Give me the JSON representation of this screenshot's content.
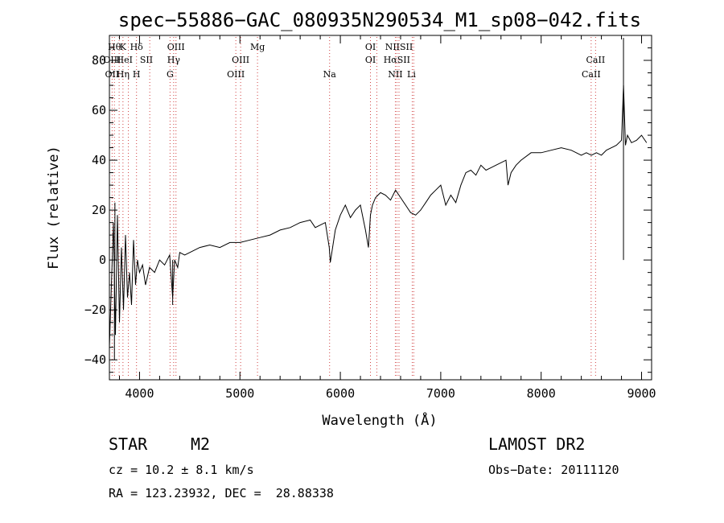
{
  "chart_data": {
    "type": "line",
    "title": "spec−55886−GAC_080935N290534_M1_sp08−042.fits",
    "xlabel": "Wavelength (Å)",
    "ylabel": "Flux (relative)",
    "xlim": [
      3700,
      9100
    ],
    "ylim": [
      -48,
      90
    ],
    "xticks": [
      4000,
      5000,
      6000,
      7000,
      8000,
      9000
    ],
    "yticks": [
      -40,
      -20,
      0,
      20,
      40,
      60,
      80
    ],
    "ytick_labels": [
      "−40",
      "−20",
      "0",
      "20",
      "40",
      "60",
      "80"
    ],
    "grid": false,
    "series": [
      {
        "x": [
          3700,
          3720,
          3740,
          3760,
          3780,
          3800,
          3820,
          3840,
          3860,
          3880,
          3900,
          3920,
          3940,
          3960,
          3980,
          4000,
          4030,
          4060,
          4100,
          4150,
          4200,
          4250,
          4300,
          4330,
          4350,
          4380,
          4400,
          4450,
          4500,
          4600,
          4700,
          4800,
          4900,
          5000,
          5100,
          5200,
          5300,
          5400,
          5500,
          5600,
          5700,
          5750,
          5800,
          5850,
          5890,
          5900,
          5950,
          6000,
          6050,
          6100,
          6150,
          6200,
          6250,
          6280,
          6300,
          6320,
          6350,
          6400,
          6450,
          6500,
          6550,
          6600,
          6650,
          6700,
          6750,
          6800,
          6850,
          6900,
          6950,
          7000,
          7050,
          7100,
          7150,
          7200,
          7250,
          7300,
          7350,
          7400,
          7450,
          7500,
          7550,
          7600,
          7650,
          7670,
          7700,
          7750,
          7800,
          7900,
          8000,
          8100,
          8200,
          8300,
          8400,
          8450,
          8500,
          8550,
          8600,
          8650,
          8700,
          8750,
          8800,
          8820,
          8840,
          8860,
          8900,
          8950,
          9000,
          9050
        ],
        "y": [
          -35,
          -10,
          15,
          -30,
          18,
          -25,
          5,
          -20,
          10,
          -15,
          -5,
          -18,
          8,
          -10,
          0,
          -5,
          -2,
          -10,
          -3,
          -5,
          0,
          -2,
          2,
          -15,
          0,
          -3,
          3,
          2,
          3,
          5,
          6,
          5,
          7,
          7,
          8,
          9,
          10,
          12,
          13,
          15,
          16,
          13,
          14,
          15,
          5,
          -1,
          12,
          18,
          22,
          17,
          20,
          22,
          12,
          5,
          18,
          22,
          25,
          27,
          26,
          24,
          28,
          25,
          22,
          19,
          18,
          20,
          23,
          26,
          28,
          30,
          22,
          26,
          23,
          30,
          35,
          36,
          34,
          38,
          36,
          37,
          38,
          39,
          40,
          30,
          35,
          38,
          40,
          43,
          43,
          44,
          45,
          44,
          42,
          43,
          42,
          43,
          42,
          44,
          45,
          46,
          48,
          70,
          46,
          50,
          47,
          48,
          50,
          47
        ],
        "spikes": [
          {
            "x": 3755,
            "y": 23
          },
          {
            "x": 3750,
            "y": -40
          },
          {
            "x": 4330,
            "y": -18
          },
          {
            "x": 8820,
            "y": 89
          }
        ]
      }
    ],
    "line_markers": [
      {
        "x": 3750,
        "label": "Hθ",
        "row": 1
      },
      {
        "x": 3835,
        "label": "K",
        "row": 1
      },
      {
        "x": 3970,
        "label": "Hδ",
        "row": 1
      },
      {
        "x": 4363,
        "label": "OIII",
        "row": 1
      },
      {
        "x": 5175,
        "label": "Mg",
        "row": 1
      },
      {
        "x": 6300,
        "label": "OI",
        "row": 1
      },
      {
        "x": 6584,
        "label": "NIISII",
        "row": 1
      },
      {
        "x": 3727,
        "label": "OIII",
        "row": 2
      },
      {
        "x": 3850,
        "label": "HeI",
        "row": 2
      },
      {
        "x": 4068,
        "label": "SII",
        "row": 2
      },
      {
        "x": 4340,
        "label": "Hγ",
        "row": 2
      },
      {
        "x": 5007,
        "label": "OIII",
        "row": 2
      },
      {
        "x": 6300,
        "label": "OI",
        "row": 2
      },
      {
        "x": 6563,
        "label": "HαSII",
        "row": 2
      },
      {
        "x": 8542,
        "label": "CaII",
        "row": 2
      },
      {
        "x": 3727,
        "label": "OII",
        "row": 3
      },
      {
        "x": 3835,
        "label": "Hη",
        "row": 3
      },
      {
        "x": 3970,
        "label": "H",
        "row": 3
      },
      {
        "x": 4304,
        "label": "G",
        "row": 3
      },
      {
        "x": 4959,
        "label": "OIII",
        "row": 3
      },
      {
        "x": 5893,
        "label": "Na",
        "row": 3
      },
      {
        "x": 6548,
        "label": "NII",
        "row": 3
      },
      {
        "x": 6708,
        "label": "Li",
        "row": 3
      },
      {
        "x": 8498,
        "label": "CaII",
        "row": 3
      }
    ],
    "marker_lines_x": [
      3727,
      3750,
      3797,
      3835,
      3889,
      3970,
      4102,
      4304,
      4340,
      4363,
      4959,
      5007,
      5175,
      5893,
      6300,
      6363,
      6548,
      6563,
      6584,
      6716,
      6731,
      8498,
      8542
    ]
  },
  "info": {
    "object_class": "STAR",
    "subclass": "M2",
    "survey": "LAMOST DR2",
    "cz": "cz = 10.2 ± 8.1 km/s",
    "obs_date": "Obs−Date: 20111120",
    "radec": "RA = 123.23932, DEC =  28.88338"
  }
}
